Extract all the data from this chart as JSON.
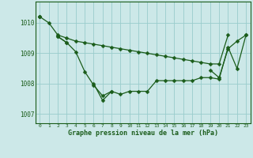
{
  "title": "Graphe pression niveau de la mer (hPa)",
  "background_color": "#cce8e8",
  "grid_color": "#99cccc",
  "line_color": "#1a5c1a",
  "xlim": [
    -0.5,
    23.5
  ],
  "ylim": [
    1006.7,
    1010.7
  ],
  "yticks": [
    1007,
    1008,
    1009,
    1010
  ],
  "xticks": [
    0,
    1,
    2,
    3,
    4,
    5,
    6,
    7,
    8,
    9,
    10,
    11,
    12,
    13,
    14,
    15,
    16,
    17,
    18,
    19,
    20,
    21,
    22,
    23
  ],
  "series1": [
    1010.2,
    1010.0,
    1009.6,
    1009.5,
    1009.4,
    1009.35,
    1009.3,
    1009.25,
    1009.2,
    1009.15,
    1009.1,
    1009.05,
    1009.0,
    1008.95,
    1008.9,
    1008.85,
    1008.8,
    1008.75,
    1008.7,
    1008.65,
    1008.65,
    1009.6,
    null,
    null
  ],
  "series2": [
    1010.2,
    null,
    null,
    null,
    null,
    null,
    null,
    null,
    null,
    null,
    null,
    null,
    null,
    null,
    null,
    null,
    null,
    null,
    null,
    1008.45,
    1008.2,
    1009.15,
    1009.4,
    1009.6
  ],
  "series3": [
    1010.2,
    null,
    1009.55,
    1009.35,
    1009.05,
    1008.4,
    1007.95,
    1007.6,
    1007.75,
    1007.65,
    1007.75,
    1007.75,
    1007.75,
    1008.1,
    1008.1,
    1008.1,
    1008.1,
    1008.1,
    1008.2,
    1008.2,
    1008.15,
    1009.2,
    1008.5,
    1009.6
  ],
  "series4": [
    null,
    null,
    1009.55,
    1009.35,
    null,
    null,
    1008.0,
    1007.45,
    1007.75,
    null,
    null,
    null,
    null,
    null,
    null,
    null,
    null,
    null,
    null,
    null,
    null,
    null,
    null,
    null
  ]
}
